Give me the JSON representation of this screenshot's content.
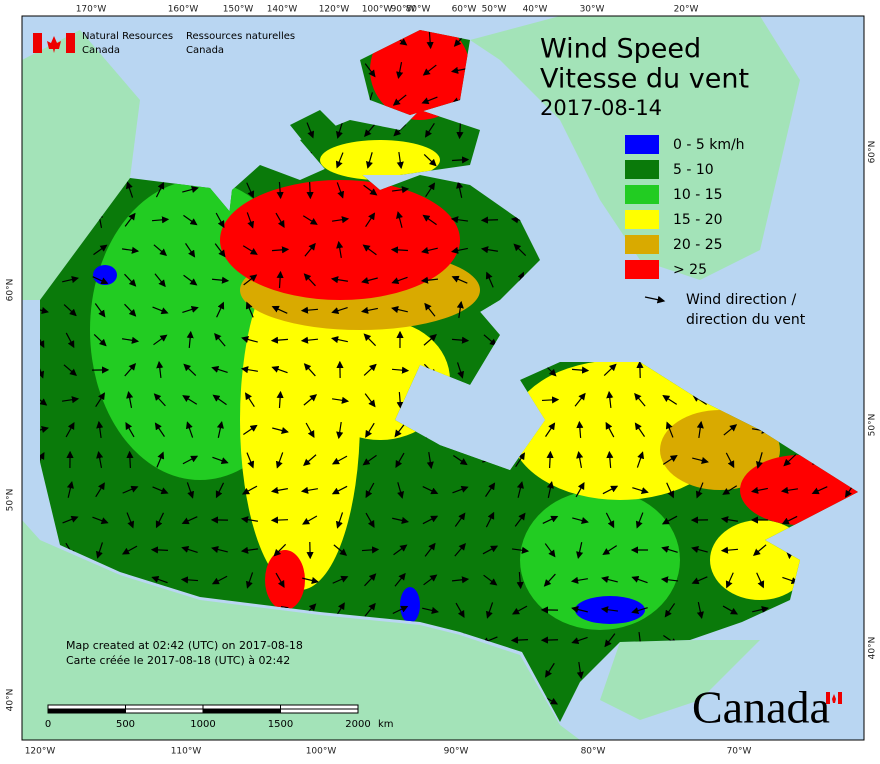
{
  "header": {
    "org_en": [
      "Natural Resources",
      "Canada"
    ],
    "org_fr": [
      "Ressources naturelles",
      "Canada"
    ]
  },
  "title": {
    "en": "Wind Speed",
    "fr": "Vitesse du vent",
    "date": "2017-08-14"
  },
  "legend": {
    "items": [
      {
        "label": "0 - 5 km/h",
        "color": "#0000ff"
      },
      {
        "label": "5 - 10",
        "color": "#0a7a0a"
      },
      {
        "label": "10 - 15",
        "color": "#22cc22"
      },
      {
        "label": "15 - 20",
        "color": "#ffff00"
      },
      {
        "label": "20 - 25",
        "color": "#d9aa00"
      },
      {
        "label": "> 25",
        "color": "#ff0000"
      }
    ],
    "direction": [
      "Wind direction /",
      "direction du vent"
    ]
  },
  "notes": [
    "Map created at 02:42 (UTC) on 2017-08-18",
    "Carte créée le 2017-08-18 (UTC) à 02:42"
  ],
  "scale": {
    "labels": [
      "0",
      "500",
      "1000",
      "1500",
      "2000"
    ],
    "unit": "km"
  },
  "graticule": {
    "top": [
      "170°W",
      "160°W",
      "150°W",
      "140°W",
      "120°W",
      "100°W",
      "90°W",
      "80°W",
      "60°W",
      "50°W",
      "40°W",
      "30°W",
      "20°W"
    ],
    "bottom": [
      "120°W",
      "110°W",
      "100°W",
      "90°W",
      "80°W",
      "70°W"
    ],
    "left": [
      "60°N",
      "50°N",
      "40°N"
    ],
    "right": [
      "60°N",
      "50°N",
      "40°N"
    ]
  },
  "wordmark": "Canada"
}
